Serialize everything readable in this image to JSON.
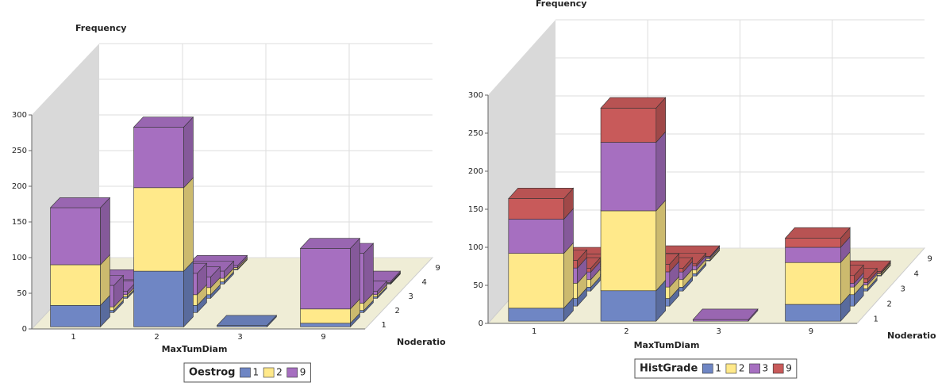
{
  "chart_data": [
    {
      "type": "bar3d",
      "y_label": "Frequency",
      "x_label": "MaxTumDiam",
      "z_label": "Noderatio",
      "legend_title": "Oestrog",
      "categories": [
        "1",
        "2",
        "3",
        "9"
      ],
      "z_categories": [
        "1",
        "2",
        "3",
        "4",
        "9"
      ],
      "ylim": [
        0,
        300
      ],
      "yticks": [
        0,
        50,
        100,
        150,
        200,
        250,
        300
      ],
      "series": [
        {
          "name": "1",
          "color": "#6f86c4",
          "values": [
            [
              30,
              3,
              2,
              1,
              0
            ],
            [
              78,
              10,
              5,
              3,
              1
            ],
            [
              2,
              0,
              0,
              0,
              0
            ],
            [
              5,
              3,
              2,
              1,
              0
            ]
          ]
        },
        {
          "name": "2",
          "color": "#ffe98a",
          "values": [
            [
              57,
              5,
              3,
              2,
              0
            ],
            [
              117,
              15,
              10,
              5,
              2
            ],
            [
              0,
              0,
              0,
              0,
              0
            ],
            [
              20,
              10,
              3,
              1,
              0
            ]
          ]
        },
        {
          "name": "9",
          "color": "#a66fc0",
          "values": [
            [
              80,
              30,
              5,
              3,
              0
            ],
            [
              85,
              30,
              15,
              10,
              3
            ],
            [
              0,
              0,
              0,
              0,
              0
            ],
            [
              85,
              70,
              5,
              2,
              0
            ]
          ]
        }
      ]
    },
    {
      "type": "bar3d",
      "y_label": "Frequency",
      "x_label": "MaxTumDiam",
      "z_label": "Noderatio",
      "legend_title": "HistGrade",
      "categories": [
        "1",
        "2",
        "3",
        "9"
      ],
      "z_categories": [
        "1",
        "2",
        "3",
        "4",
        "9"
      ],
      "ylim": [
        0,
        300
      ],
      "yticks": [
        0,
        50,
        100,
        150,
        200,
        250,
        300
      ],
      "series": [
        {
          "name": "1",
          "color": "#6f86c4",
          "values": [
            [
              17,
              10,
              5,
              2,
              1
            ],
            [
              40,
              10,
              5,
              3,
              1
            ],
            [
              0,
              0,
              0,
              0,
              0
            ],
            [
              22,
              15,
              3,
              1,
              0
            ]
          ]
        },
        {
          "name": "2",
          "color": "#ffe98a",
          "values": [
            [
              72,
              20,
              10,
              5,
              1
            ],
            [
              105,
              15,
              10,
              5,
              2
            ],
            [
              0,
              0,
              0,
              0,
              0
            ],
            [
              55,
              10,
              5,
              2,
              0
            ]
          ]
        },
        {
          "name": "3",
          "color": "#a66fc0",
          "values": [
            [
              45,
              20,
              10,
              5,
              1
            ],
            [
              90,
              20,
              10,
              5,
              2
            ],
            [
              2,
              0,
              0,
              0,
              0
            ],
            [
              20,
              5,
              3,
              1,
              0
            ]
          ]
        },
        {
          "name": "9",
          "color": "#c85a5a",
          "values": [
            [
              27,
              10,
              5,
              3,
              1
            ],
            [
              45,
              10,
              5,
              3,
              1
            ],
            [
              0,
              0,
              0,
              0,
              0
            ],
            [
              12,
              10,
              5,
              2,
              0
            ]
          ]
        }
      ]
    }
  ]
}
